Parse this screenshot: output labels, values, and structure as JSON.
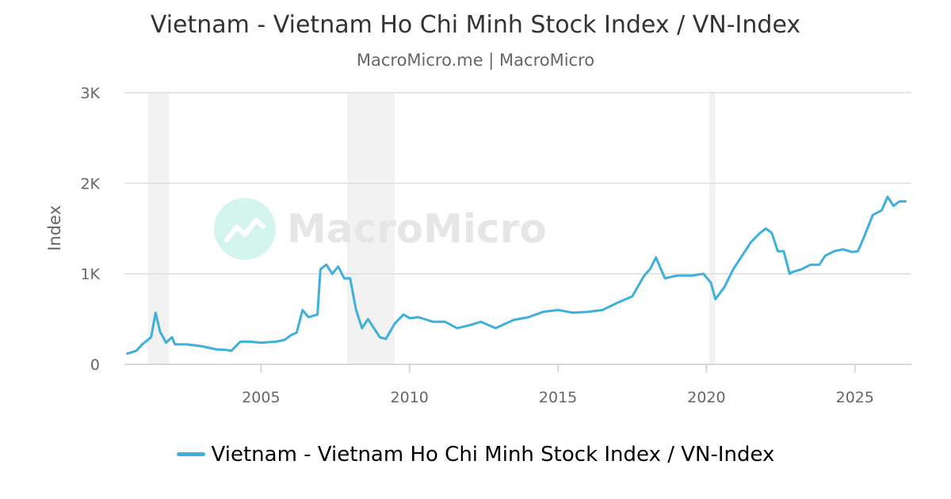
{
  "chart_data": {
    "type": "line",
    "title": "Vietnam - Vietnam Ho Chi Minh Stock Index / VN-Index",
    "subtitle": "MacroMicro.me | MacroMicro",
    "ylabel": "Index",
    "xlabel": "",
    "watermark": "MacroMicro",
    "xlim": [
      2000.4,
      2026.9
    ],
    "ylim": [
      0,
      3000
    ],
    "y_ticks": [
      {
        "value": 0,
        "label": "0"
      },
      {
        "value": 1000,
        "label": "1K"
      },
      {
        "value": 2000,
        "label": "2K"
      },
      {
        "value": 3000,
        "label": "3K"
      }
    ],
    "x_ticks": [
      {
        "value": 2005,
        "label": "2005"
      },
      {
        "value": 2010,
        "label": "2010"
      },
      {
        "value": 2015,
        "label": "2015"
      },
      {
        "value": 2020,
        "label": "2020"
      },
      {
        "value": 2025,
        "label": "2025"
      }
    ],
    "grid": true,
    "legend_position": "bottom",
    "shaded_periods": [
      [
        2001.2,
        2001.9
      ],
      [
        2007.9,
        2009.5
      ],
      [
        2020.1,
        2020.3
      ]
    ],
    "colors": {
      "line": "#3eb0d9",
      "shade": "#f2f2f2",
      "grid": "#dddddd"
    },
    "series": [
      {
        "name": "Vietnam - Vietnam Ho Chi Minh Stock Index / VN-Index",
        "x": [
          2000.5,
          2000.8,
          2001.0,
          2001.3,
          2001.45,
          2001.6,
          2001.8,
          2002.0,
          2002.1,
          2002.5,
          2003.0,
          2003.5,
          2003.8,
          2004.0,
          2004.3,
          2004.6,
          2005.0,
          2005.5,
          2005.8,
          2006.0,
          2006.2,
          2006.4,
          2006.6,
          2006.9,
          2007.0,
          2007.2,
          2007.4,
          2007.6,
          2007.8,
          2008.0,
          2008.2,
          2008.4,
          2008.6,
          2008.8,
          2009.0,
          2009.2,
          2009.5,
          2009.8,
          2010.0,
          2010.3,
          2010.8,
          2011.2,
          2011.6,
          2012.0,
          2012.4,
          2012.9,
          2013.5,
          2014.0,
          2014.5,
          2015.0,
          2015.5,
          2016.0,
          2016.5,
          2017.0,
          2017.5,
          2017.9,
          2018.1,
          2018.3,
          2018.6,
          2019.0,
          2019.5,
          2019.9,
          2020.15,
          2020.3,
          2020.6,
          2020.9,
          2021.2,
          2021.5,
          2021.8,
          2022.0,
          2022.2,
          2022.4,
          2022.6,
          2022.8,
          2022.9,
          2023.2,
          2023.5,
          2023.8,
          2024.0,
          2024.3,
          2024.6,
          2024.9,
          2025.1,
          2025.3,
          2025.6,
          2025.9,
          2026.1,
          2026.3,
          2026.5,
          2026.7
        ],
        "values": [
          120,
          150,
          220,
          300,
          570,
          360,
          240,
          300,
          220,
          220,
          200,
          165,
          160,
          150,
          250,
          250,
          240,
          250,
          270,
          320,
          350,
          600,
          520,
          550,
          1050,
          1100,
          1000,
          1080,
          950,
          950,
          600,
          400,
          500,
          400,
          300,
          280,
          450,
          550,
          510,
          520,
          470,
          470,
          400,
          430,
          470,
          400,
          490,
          520,
          580,
          600,
          570,
          580,
          600,
          680,
          750,
          980,
          1050,
          1180,
          950,
          980,
          980,
          1000,
          900,
          720,
          850,
          1050,
          1200,
          1350,
          1450,
          1500,
          1450,
          1250,
          1250,
          1000,
          1020,
          1050,
          1100,
          1100,
          1200,
          1250,
          1270,
          1240,
          1250,
          1400,
          1650,
          1700,
          1850,
          1750,
          1800,
          1800
        ]
      }
    ]
  }
}
